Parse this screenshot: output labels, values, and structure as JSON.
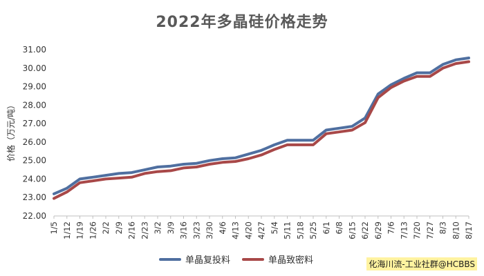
{
  "chart_data": {
    "type": "line",
    "title": "2022年多晶硅价格走势",
    "ylabel": "价格（万元/吨）",
    "xlabel": "",
    "ylim": [
      22.0,
      31.0
    ],
    "y_ticks": [
      "22.00",
      "23.00",
      "24.00",
      "25.00",
      "26.00",
      "27.00",
      "28.00",
      "29.00",
      "30.00",
      "31.00"
    ],
    "grid": false,
    "legend_position": "bottom",
    "categories": [
      "1/5",
      "1/12",
      "1/19",
      "1/26",
      "2/2",
      "2/9",
      "2/16",
      "2/23",
      "3/2",
      "3/9",
      "3/16",
      "3/23",
      "3/30",
      "4/6",
      "4/13",
      "4/20",
      "4/27",
      "5/4",
      "5/11",
      "5/18",
      "5/25",
      "6/1",
      "6/8",
      "6/15",
      "6/22",
      "6/29",
      "7/6",
      "7/13",
      "7/20",
      "7/27",
      "8/3",
      "8/10",
      "8/17"
    ],
    "series": [
      {
        "name": "单晶复投料",
        "color": "#4f6fa0",
        "values": [
          23.2,
          23.5,
          24.0,
          24.1,
          24.2,
          24.3,
          24.35,
          24.5,
          24.65,
          24.7,
          24.8,
          24.85,
          25.0,
          25.1,
          25.15,
          25.35,
          25.55,
          25.85,
          26.1,
          26.1,
          26.1,
          26.65,
          26.75,
          26.85,
          27.3,
          28.6,
          29.1,
          29.45,
          29.75,
          29.75,
          30.2,
          30.45,
          30.55
        ]
      },
      {
        "name": "单晶致密料",
        "color": "#a84848",
        "values": [
          22.95,
          23.3,
          23.8,
          23.9,
          24.0,
          24.05,
          24.1,
          24.3,
          24.4,
          24.45,
          24.6,
          24.65,
          24.8,
          24.9,
          24.95,
          25.1,
          25.3,
          25.6,
          25.85,
          25.85,
          25.85,
          26.45,
          26.55,
          26.65,
          27.05,
          28.4,
          28.95,
          29.3,
          29.55,
          29.55,
          30.0,
          30.25,
          30.35
        ]
      }
    ]
  },
  "watermark": "化海川流-工业社群@HCBBS"
}
